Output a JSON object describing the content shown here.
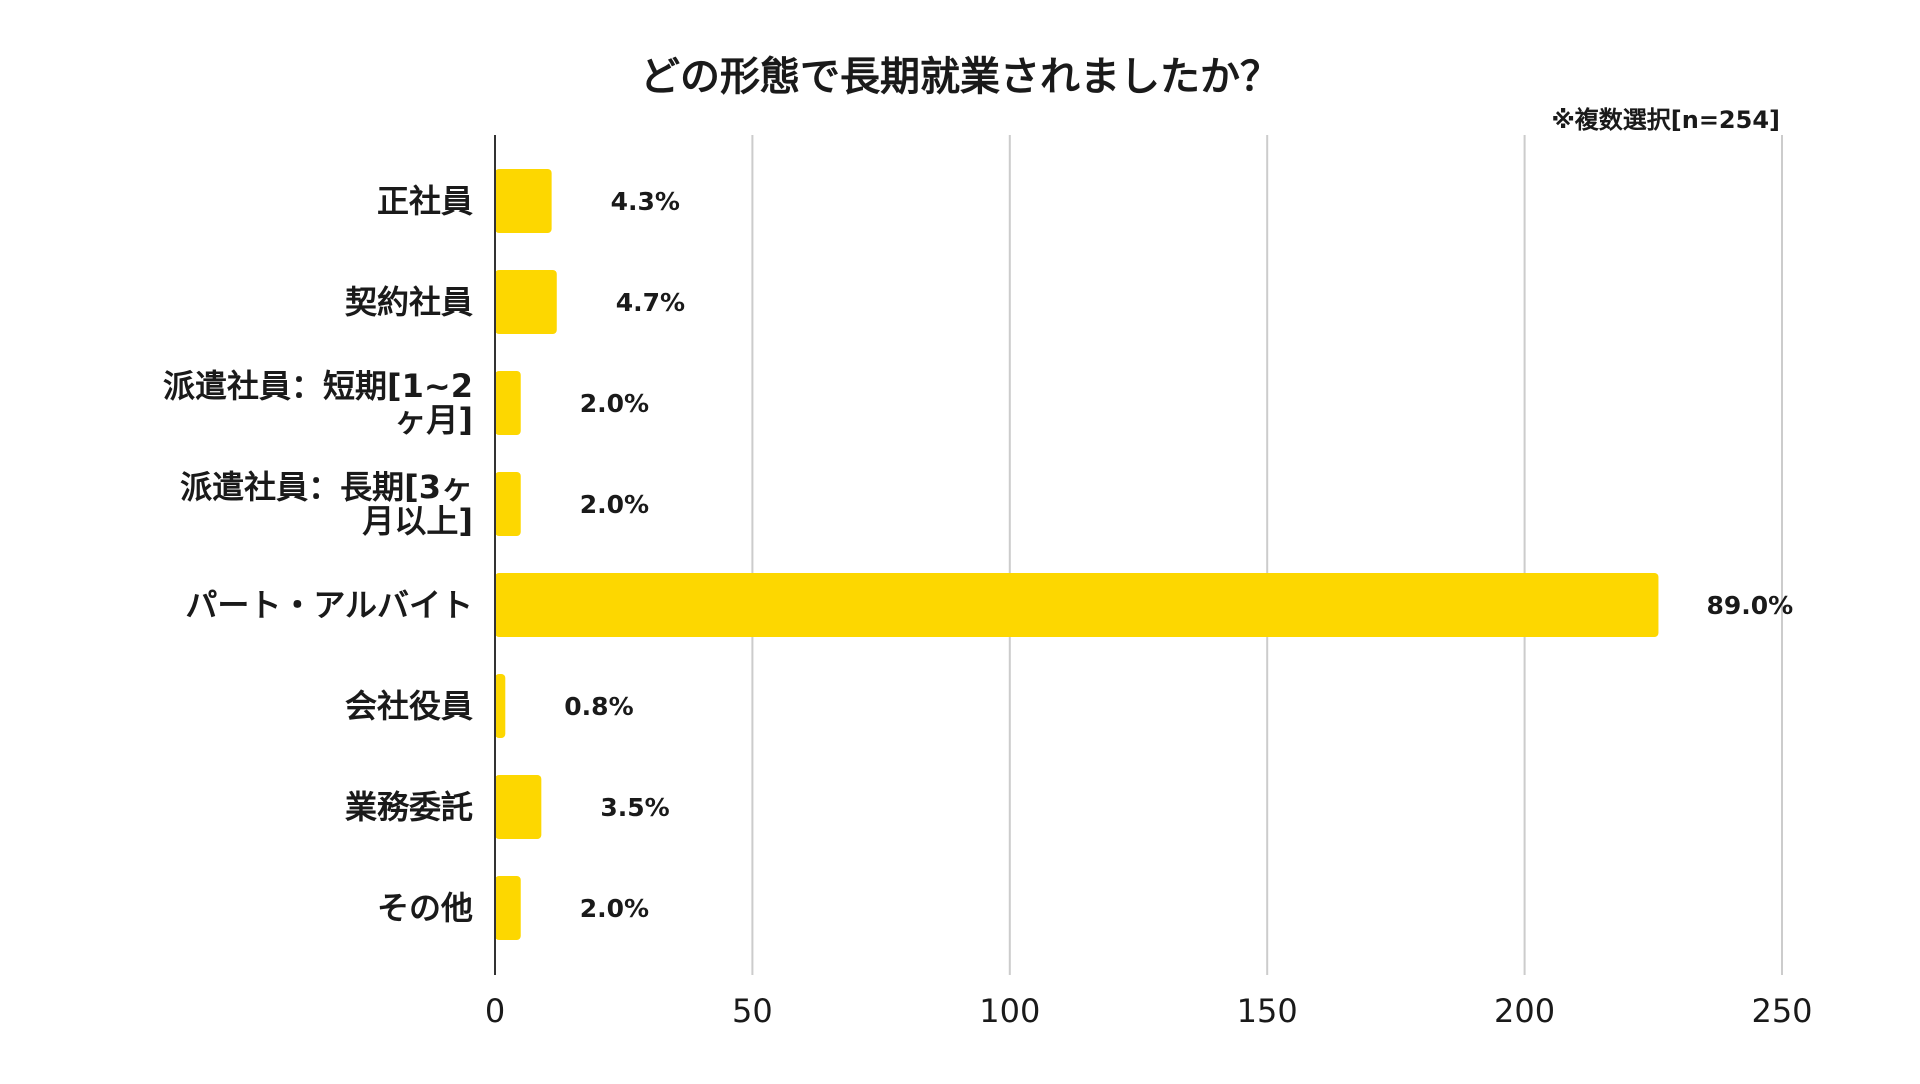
{
  "chart_data": {
    "type": "bar",
    "orientation": "horizontal",
    "title": "どの形態で長期就業されましたか？",
    "note": "※複数選択[n=254]",
    "categories": [
      "正社員",
      "契約社員",
      "派遣社員：短期[1~2ヶ月]",
      "派遣社員：長期[3ヶ月以上]",
      "パート・アルバイト",
      "会社役員",
      "業務委託",
      "その他"
    ],
    "category_lines": [
      [
        "正社員"
      ],
      [
        "契約社員"
      ],
      [
        "派遣社員：短期[1~2",
        "ヶ月]"
      ],
      [
        "派遣社員：長期[3ヶ",
        "月以上]"
      ],
      [
        "パート・アルバイト"
      ],
      [
        "会社役員"
      ],
      [
        "業務委託"
      ],
      [
        "その他"
      ]
    ],
    "values": [
      11,
      12,
      5,
      5,
      226,
      2,
      9,
      5
    ],
    "data_labels": [
      "4.3%",
      "4.7%",
      "2.0%",
      "2.0%",
      "89.0%",
      "0.8%",
      "3.5%",
      "2.0%"
    ],
    "xlim": [
      0,
      250
    ],
    "x_ticks": [
      0,
      50,
      100,
      150,
      200,
      250
    ],
    "xlabel": "",
    "ylabel": "",
    "grid": true,
    "legend": "none",
    "bar_color": "#FDD700",
    "grid_color": "#cccccc",
    "axis_color": "#333333"
  }
}
